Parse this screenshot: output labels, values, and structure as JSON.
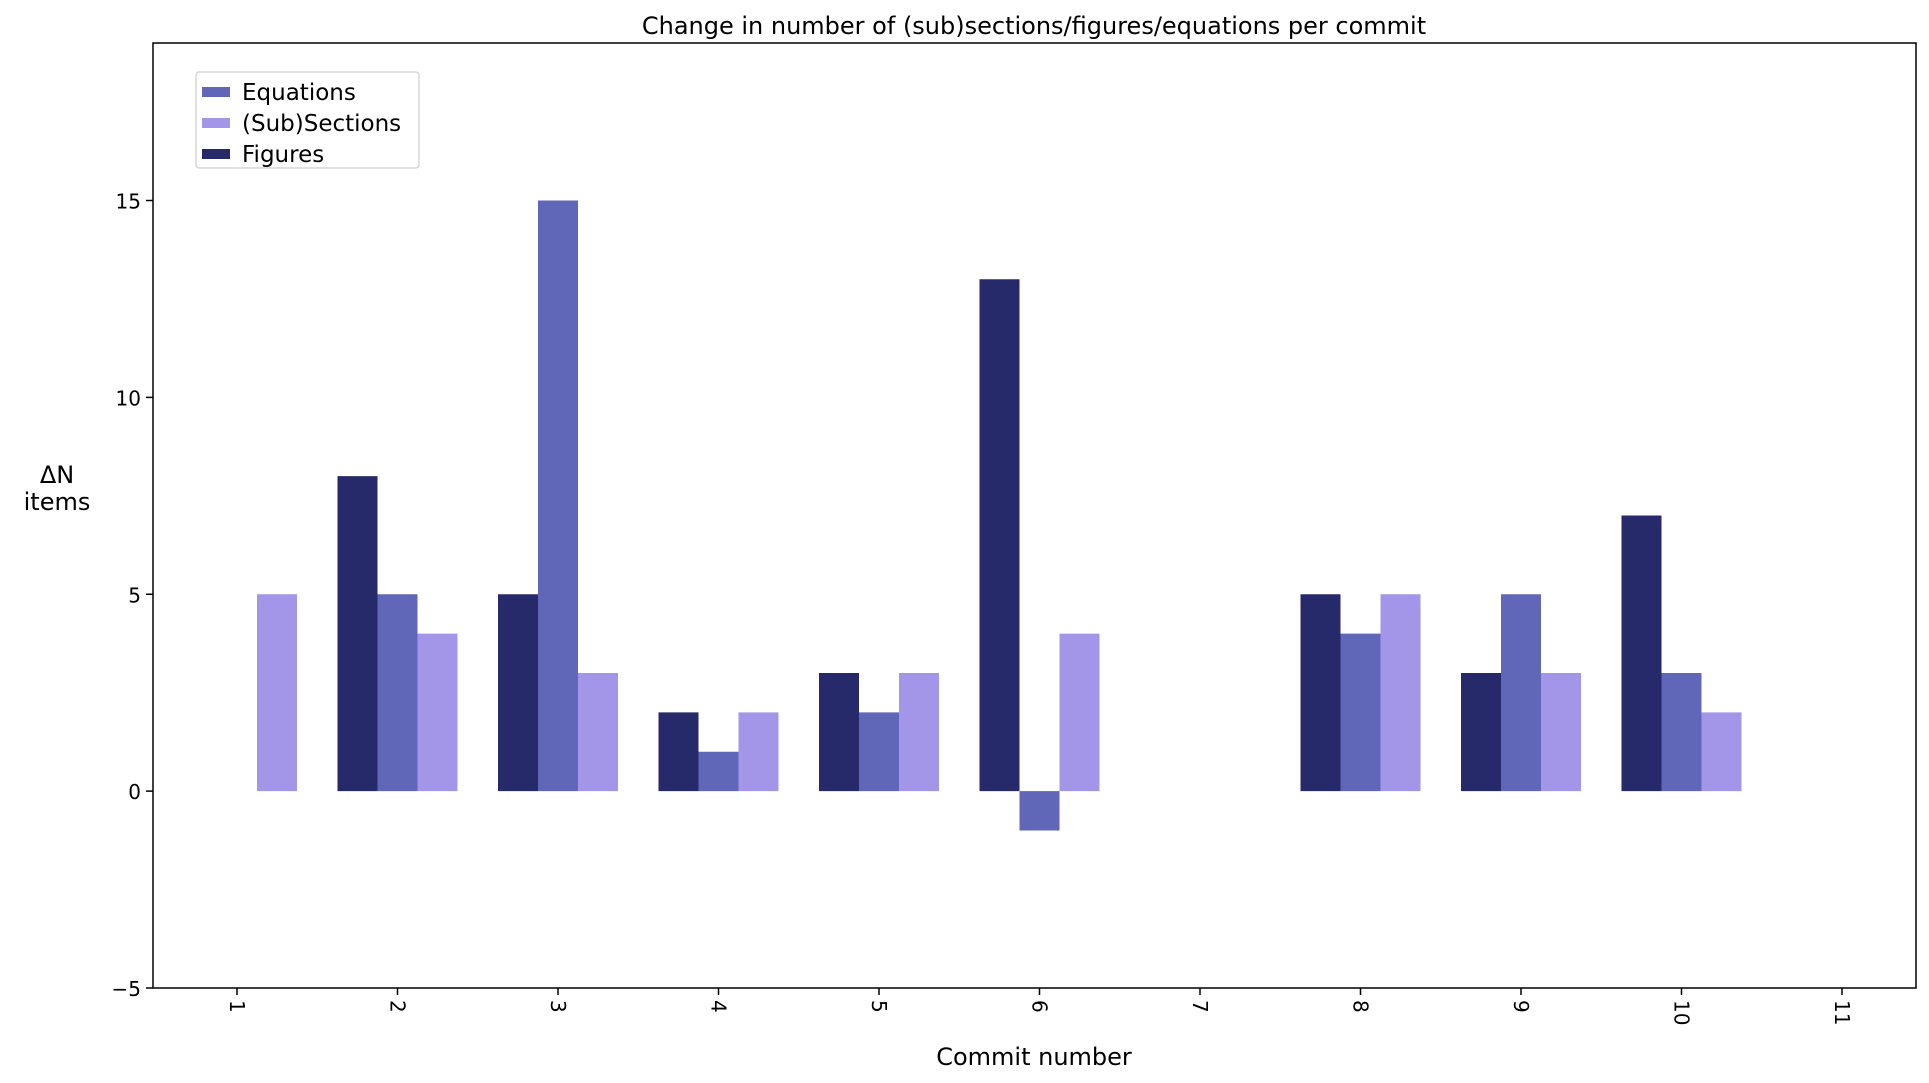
{
  "chart_data": {
    "type": "bar",
    "title": "Change in number of (sub)sections/figures/equations per commit",
    "xlabel": "Commit number",
    "ylabel_lines": [
      "ΔN",
      "items"
    ],
    "ylim": [
      -5,
      19
    ],
    "yticks": [
      -5,
      0,
      5,
      10,
      15
    ],
    "ytick_labels": [
      "−5",
      "0",
      "5",
      "10",
      "15"
    ],
    "categories": [
      "1",
      "2",
      "3",
      "4",
      "5",
      "6",
      "7",
      "8",
      "9",
      "10",
      "11"
    ],
    "grid": false,
    "legend_position": "top-left",
    "series": [
      {
        "name": "Figures",
        "color": "#272a6a",
        "values": [
          0,
          8,
          5,
          2,
          3,
          13,
          0,
          5,
          3,
          7,
          0
        ]
      },
      {
        "name": "Equations",
        "color": "#6066b8",
        "values": [
          0,
          5,
          15,
          1,
          2,
          -1,
          0,
          4,
          5,
          3,
          0
        ]
      },
      {
        "name": "(Sub)Sections",
        "color": "#a396e8",
        "values": [
          5,
          4,
          3,
          2,
          3,
          4,
          0,
          5,
          3,
          2,
          0
        ]
      }
    ],
    "legend_order": [
      "Equations",
      "(Sub)Sections",
      "Figures"
    ]
  }
}
